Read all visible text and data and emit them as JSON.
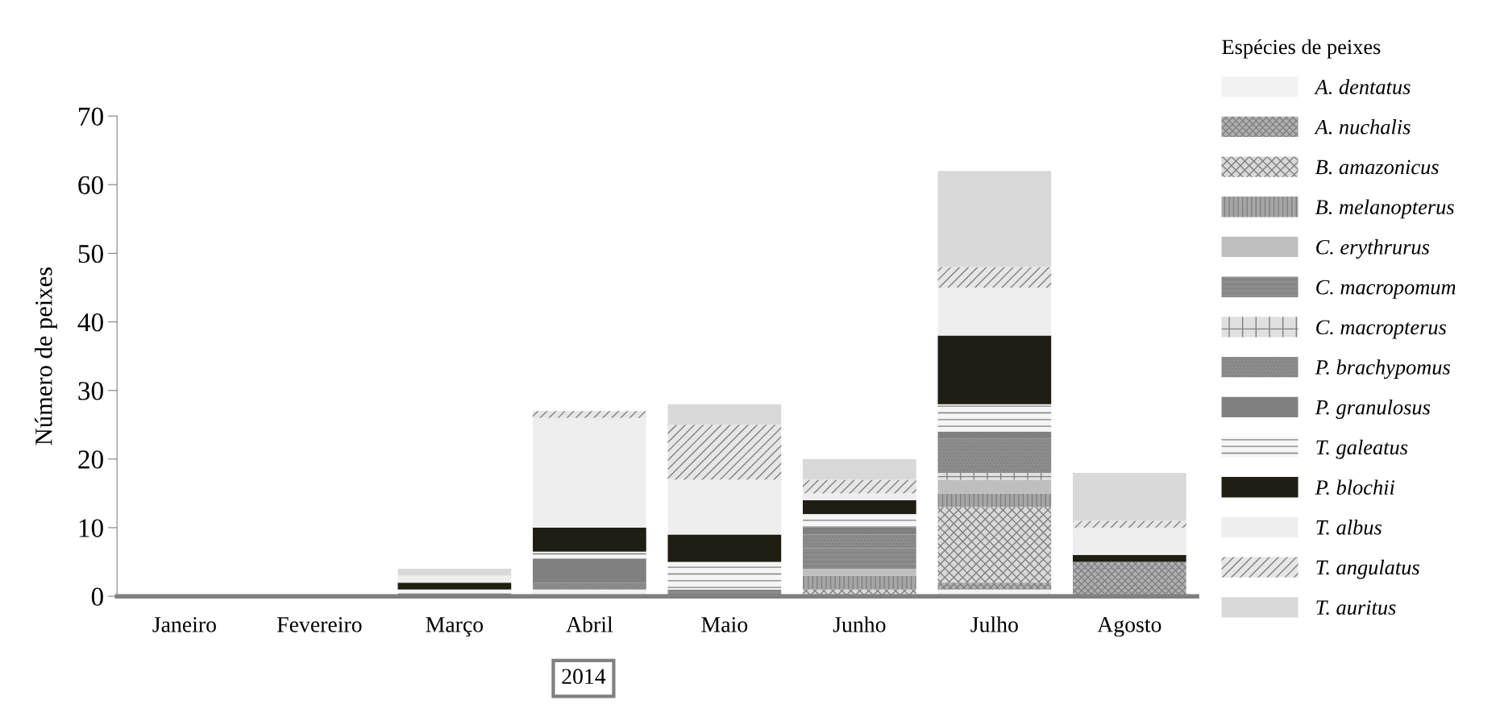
{
  "chart_data": {
    "type": "bar",
    "stacked": true,
    "ylabel": "Número de peixes",
    "legend_title": "Espécies de peixes",
    "legend": "right",
    "categories": [
      "Janeiro",
      "Fevereiro",
      "Março",
      "Abril",
      "Maio",
      "Junho",
      "Julho",
      "Agosto"
    ],
    "ylim": [
      0,
      70
    ],
    "yticks": [
      0,
      10,
      20,
      30,
      40,
      50,
      60,
      70
    ],
    "grid": false,
    "annotations": [
      "2014"
    ],
    "series": [
      {
        "name": "A. dentatus",
        "color": "#f2f2f2",
        "values": [
          0,
          0,
          0,
          1,
          0,
          0,
          1,
          0
        ]
      },
      {
        "name": "A. nuchalis",
        "color": "#b0b0b0",
        "values": [
          0,
          0,
          0,
          0,
          0,
          0,
          1,
          5
        ]
      },
      {
        "name": "B. amazonicus",
        "color": "#d9d9d9",
        "values": [
          0,
          0,
          0,
          0,
          0,
          1,
          11,
          0
        ]
      },
      {
        "name": "B. melanopterus",
        "color": "#a6a6a6",
        "values": [
          0,
          0,
          0,
          0,
          0,
          2,
          2,
          0
        ]
      },
      {
        "name": "C. erythrurus",
        "color": "#bfbfbf",
        "values": [
          0,
          0,
          0,
          0,
          0,
          1,
          2,
          0
        ]
      },
      {
        "name": "C. macropomum",
        "color": "#8c8c8c",
        "values": [
          0,
          0,
          0,
          0,
          0,
          3,
          0,
          0
        ]
      },
      {
        "name": "C. macropterus",
        "color": "#e0e0e0",
        "values": [
          0,
          0,
          0,
          0,
          0,
          0,
          1,
          0
        ]
      },
      {
        "name": "P. brachypomus",
        "color": "#8c8c8c",
        "values": [
          0,
          0,
          0,
          1,
          1,
          2,
          5,
          0
        ]
      },
      {
        "name": "P. granulosus",
        "color": "#808080",
        "values": [
          0,
          0,
          0,
          3.5,
          0,
          1,
          1,
          0
        ]
      },
      {
        "name": "T. galeatus",
        "color": "#f5f5f5",
        "values": [
          0,
          0,
          1,
          1,
          4,
          2,
          4,
          0
        ]
      },
      {
        "name": "P. blochii",
        "color": "#201e12",
        "values": [
          0,
          0,
          1,
          3.5,
          4,
          2,
          10,
          1
        ]
      },
      {
        "name": "T. albus",
        "color": "#eeeeee",
        "values": [
          0,
          0,
          1,
          16,
          8,
          1,
          7,
          4
        ]
      },
      {
        "name": "T. angulatus",
        "color": "#e6e6e6",
        "values": [
          0,
          0,
          0,
          1,
          8,
          2,
          3,
          1
        ]
      },
      {
        "name": "T. auritus",
        "color": "#d9d9d9",
        "values": [
          0,
          0,
          1,
          0,
          3,
          3,
          14,
          7
        ]
      }
    ]
  }
}
